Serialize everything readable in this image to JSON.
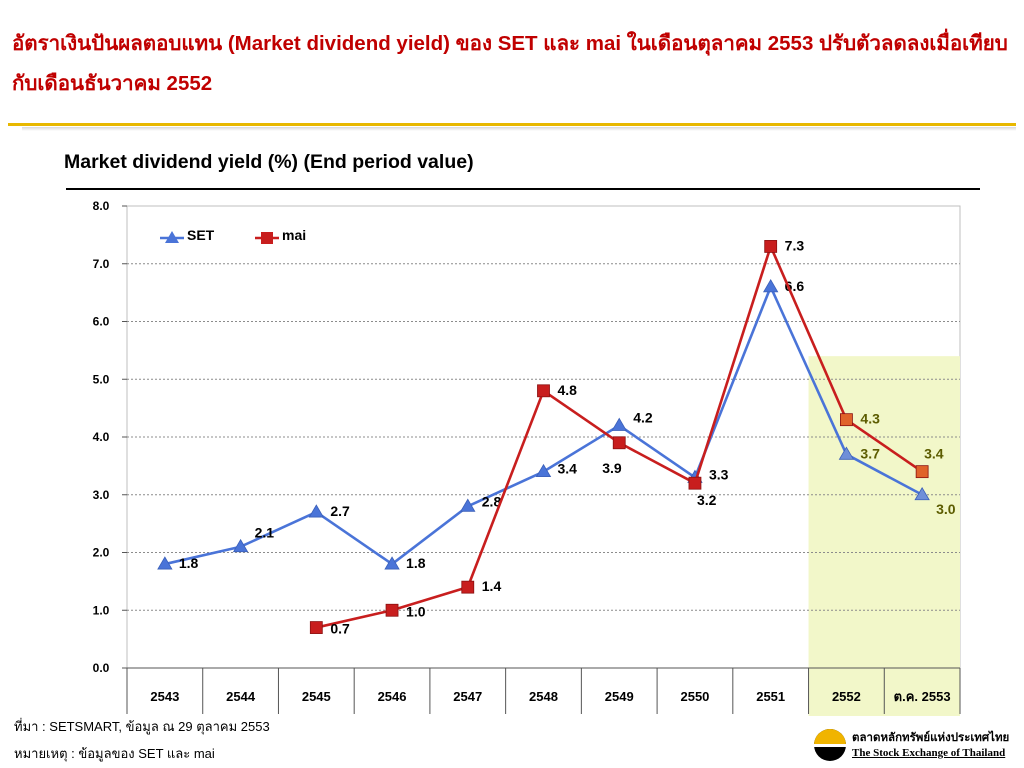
{
  "header": {
    "title": "อัตราเงินปันผลตอบแทน (Market dividend yield) ของ SET และ mai ในเดือนตุลาคม 2553 ปรับตัวลดลงเมื่อเทียบกับเดือนธันวาคม 2552"
  },
  "colors": {
    "title_red": "#c00000",
    "gold_rule": "#e8b800",
    "set_line": "#4a74d8",
    "mai_line": "#c81e1e",
    "highlight_band": "#f2f7c9"
  },
  "chart_data": {
    "type": "line",
    "title": "Market dividend yield (%) (End period value)",
    "categories": [
      "2543",
      "2544",
      "2545",
      "2546",
      "2547",
      "2548",
      "2549",
      "2550",
      "2551",
      "2552",
      "ต.ค. 2553"
    ],
    "series": [
      {
        "name": "SET",
        "marker": "triangle",
        "color": "#4a74d8",
        "values": [
          1.8,
          2.1,
          2.7,
          1.8,
          2.8,
          3.4,
          4.2,
          3.3,
          6.6,
          3.7,
          3.0
        ]
      },
      {
        "name": "mai",
        "marker": "square",
        "color": "#c81e1e",
        "values": [
          null,
          null,
          0.7,
          1.0,
          1.4,
          4.8,
          3.9,
          3.2,
          7.3,
          4.3,
          3.4
        ]
      }
    ],
    "ylim": [
      0,
      8
    ],
    "yticks": [
      "0.0",
      "1.0",
      "2.0",
      "3.0",
      "4.0",
      "5.0",
      "6.0",
      "7.0",
      "8.0"
    ],
    "grid": true,
    "legend": "top-left",
    "highlighted_categories": [
      "2552",
      "ต.ค. 2553"
    ]
  },
  "footnotes": {
    "source": "ที่มา : SETSMART, ข้อมูล ณ 29 ตุลาคม 2553",
    "note": "หมายเหตุ : ข้อมูลของ SET และ mai"
  },
  "logo": {
    "name_th": "ตลาดหลักทรัพย์แห่งประเทศไทย",
    "name_en": "The Stock Exchange of Thailand"
  }
}
